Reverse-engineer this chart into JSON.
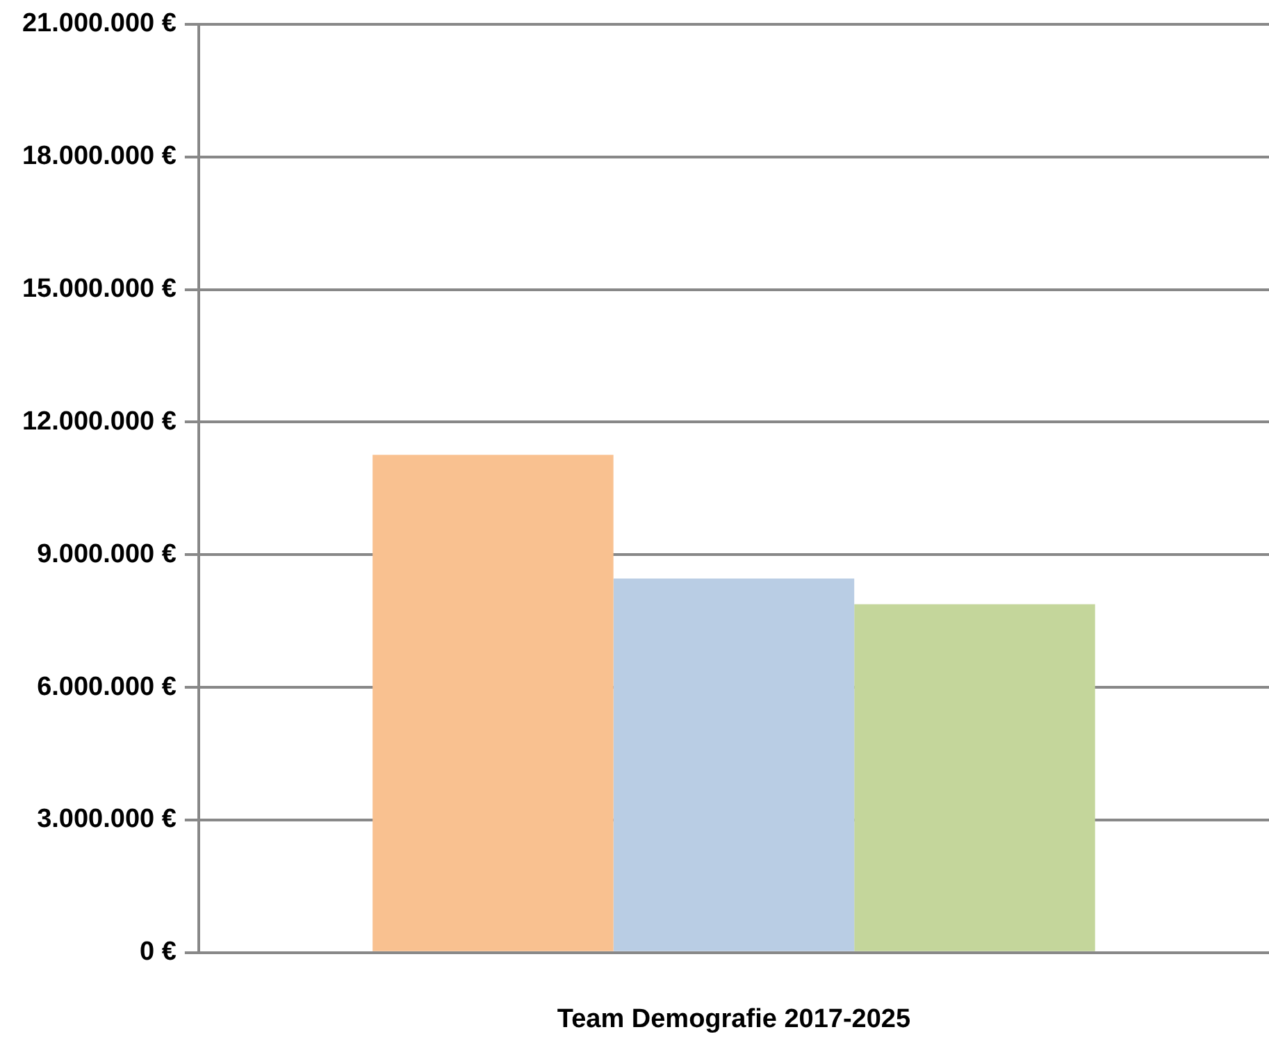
{
  "chart_data": {
    "type": "bar",
    "xlabel": "Team Demografie 2017-2025",
    "categories": [
      null
    ],
    "series": [
      {
        "color": "#f9c190",
        "values": [
          11260000
        ]
      },
      {
        "color": "#b9cde4",
        "values": [
          8460000
        ]
      },
      {
        "color": "#c4d69b",
        "values": [
          7880000
        ]
      }
    ],
    "ylim": [
      0,
      21000000
    ],
    "yticks": [
      {
        "value": 0,
        "label": "0 €"
      },
      {
        "value": 3000000,
        "label": "3.000.000 €"
      },
      {
        "value": 6000000,
        "label": "6.000.000 €"
      },
      {
        "value": 9000000,
        "label": "9.000.000 €"
      },
      {
        "value": 12000000,
        "label": "12.000.000 €"
      },
      {
        "value": 15000000,
        "label": "15.000.000 €"
      },
      {
        "value": 18000000,
        "label": "18.000.000 €"
      },
      {
        "value": 21000000,
        "label": "21.000.000 €"
      }
    ],
    "grid": "y",
    "legend": false
  }
}
